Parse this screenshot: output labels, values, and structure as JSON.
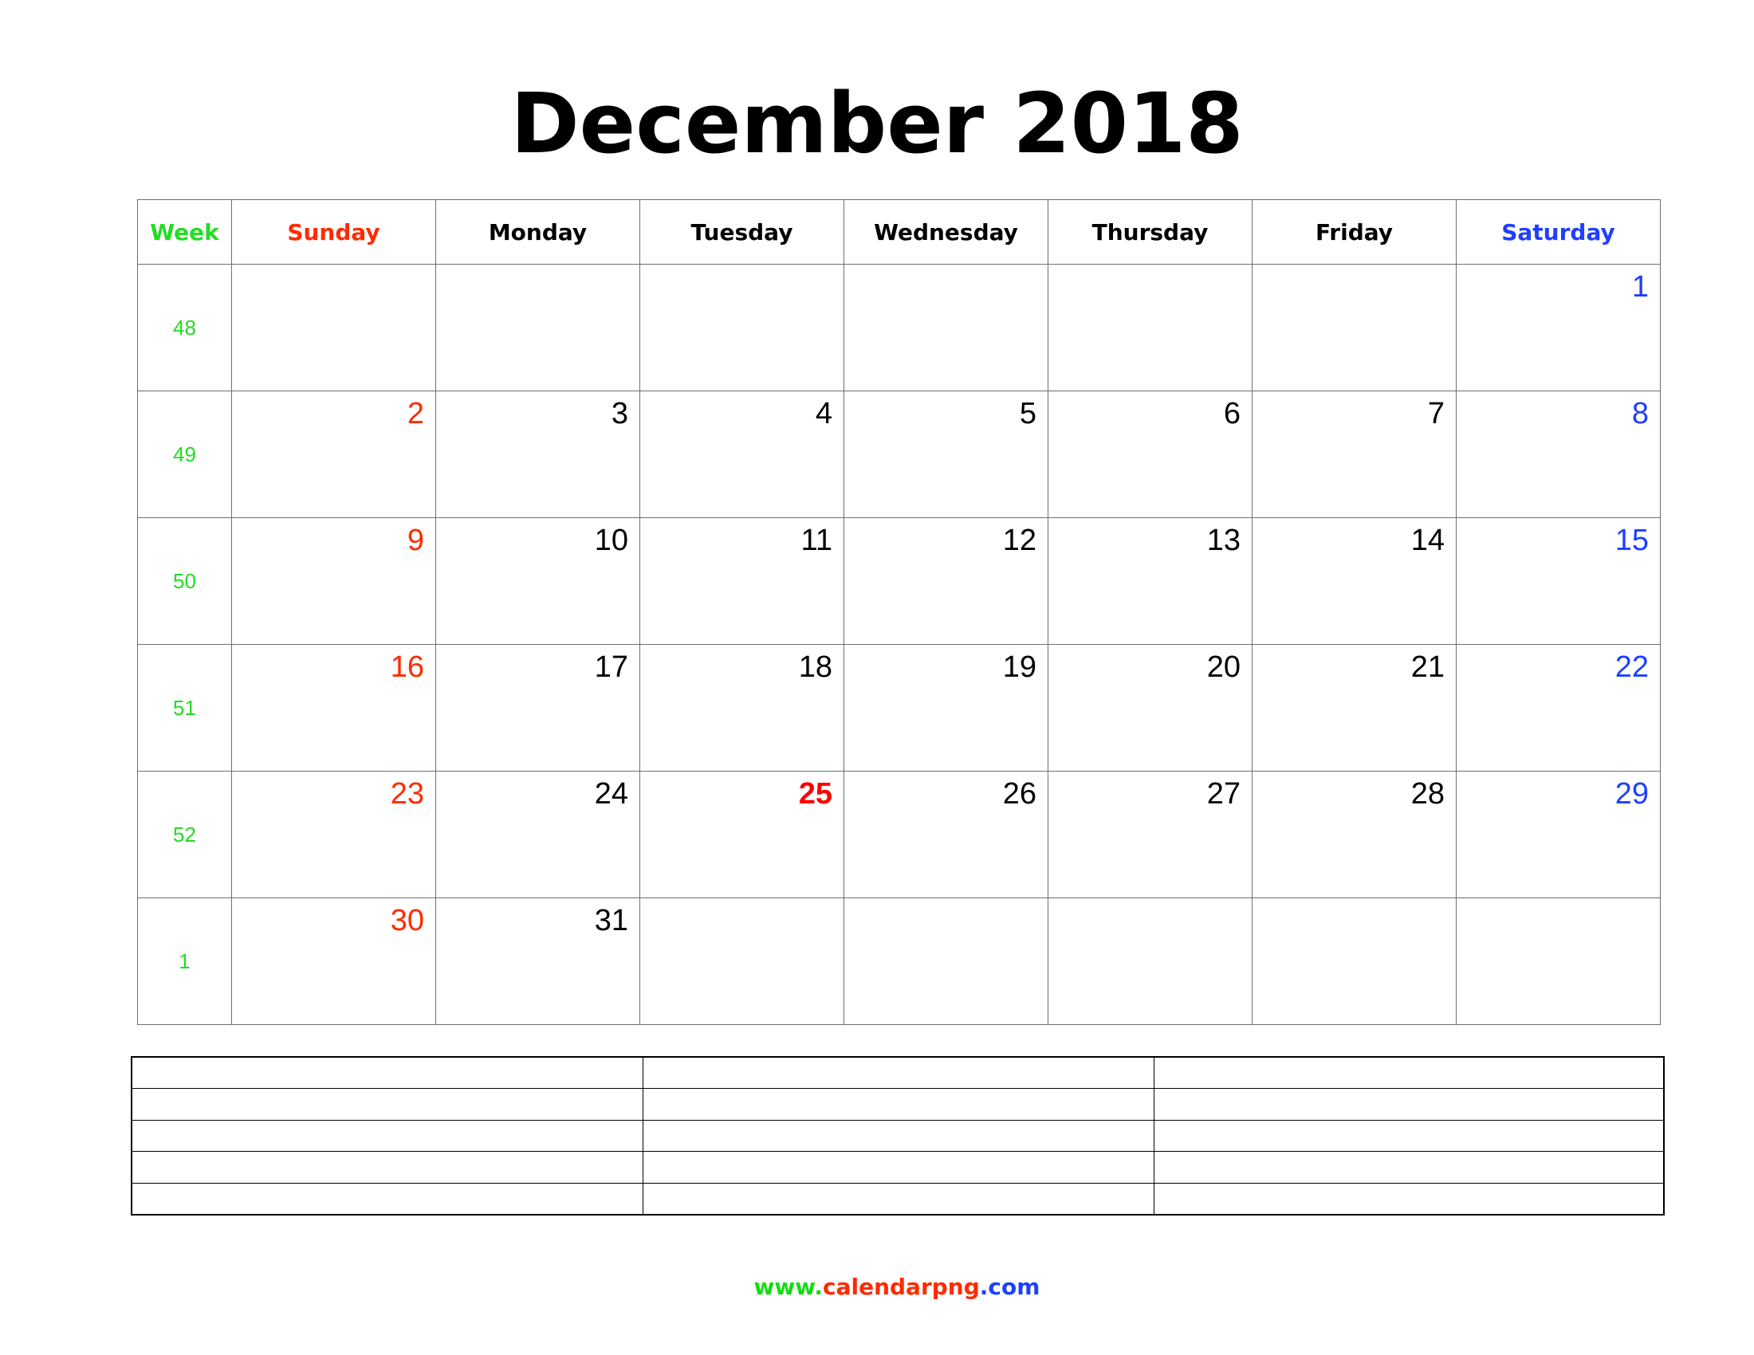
{
  "title": "December 2018",
  "colors": {
    "week": "#22dd22",
    "sunday": "#ff2a00",
    "saturday": "#1f3fff",
    "holiday": "#ff0000",
    "grid": "#6f6f6f"
  },
  "headers": [
    "Week",
    "Sunday",
    "Monday",
    "Tuesday",
    "Wednesday",
    "Thursday",
    "Friday",
    "Saturday"
  ],
  "weeks": [
    {
      "week": "48",
      "days": [
        "",
        "",
        "",
        "",
        "",
        "",
        "1"
      ]
    },
    {
      "week": "49",
      "days": [
        "2",
        "3",
        "4",
        "5",
        "6",
        "7",
        "8"
      ]
    },
    {
      "week": "50",
      "days": [
        "9",
        "10",
        "11",
        "12",
        "13",
        "14",
        "15"
      ]
    },
    {
      "week": "51",
      "days": [
        "16",
        "17",
        "18",
        "19",
        "20",
        "21",
        "22"
      ]
    },
    {
      "week": "52",
      "days": [
        "23",
        "24",
        "25",
        "26",
        "27",
        "28",
        "29"
      ]
    },
    {
      "week": "1",
      "days": [
        "30",
        "31",
        "",
        "",
        "",
        "",
        ""
      ]
    }
  ],
  "holiday_day": "25",
  "footer": {
    "part1": "www.",
    "part2": "calendarpng",
    "part3": ".com"
  }
}
